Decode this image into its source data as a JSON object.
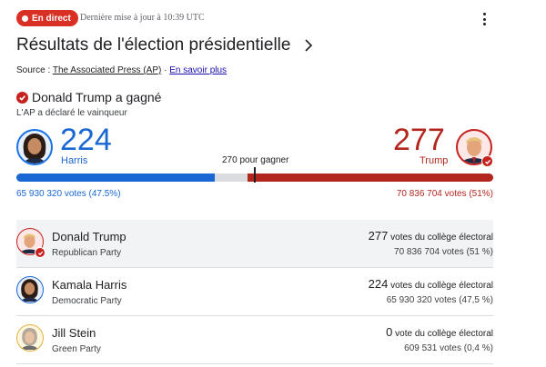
{
  "header": {
    "live_label": "En direct",
    "updated_text": "Dernière mise à jour à 10:39 UTC",
    "more_icon": "more-vert-icon"
  },
  "title": "Résultats de l'élection présidentielle",
  "source": {
    "prefix": "Source : ",
    "name": "The Associated Press (AP)",
    "separator": " · ",
    "learn_more": "En savoir plus"
  },
  "winner": {
    "headline": "Donald Trump a gagné",
    "subline": "L'AP a déclaré le vainqueur",
    "icon": "check-circle-icon"
  },
  "scoreboard": {
    "harris": {
      "ev": "224",
      "name": "Harris",
      "popular": "65 930 320 votes (47.5%)"
    },
    "trump": {
      "ev": "277",
      "name": "Trump",
      "popular": "70 836 704 votes (51%)"
    },
    "to_win_label": "270 pour gagner",
    "total_ev": 538,
    "to_win_ev": 270,
    "harris_ev_value": 224,
    "trump_ev_value": 277,
    "colors": {
      "dem": "#1967d2",
      "rep": "#b3261e",
      "remaining": "#dadce0"
    }
  },
  "candidates": [
    {
      "name": "Donald Trump",
      "party": "Republican Party",
      "ev_count": "277",
      "ev_label": " votes du collège électoral",
      "popular": "70 836 704 votes (51 %)"
    },
    {
      "name": "Kamala Harris",
      "party": "Democratic Party",
      "ev_count": "224",
      "ev_label": " votes du collège électoral",
      "popular": "65 930 320 votes (47,5 %)"
    },
    {
      "name": "Jill Stein",
      "party": "Green Party",
      "ev_count": "0",
      "ev_label": " vote du collège électoral",
      "popular": "609 531 votes (0,4 %)"
    }
  ]
}
